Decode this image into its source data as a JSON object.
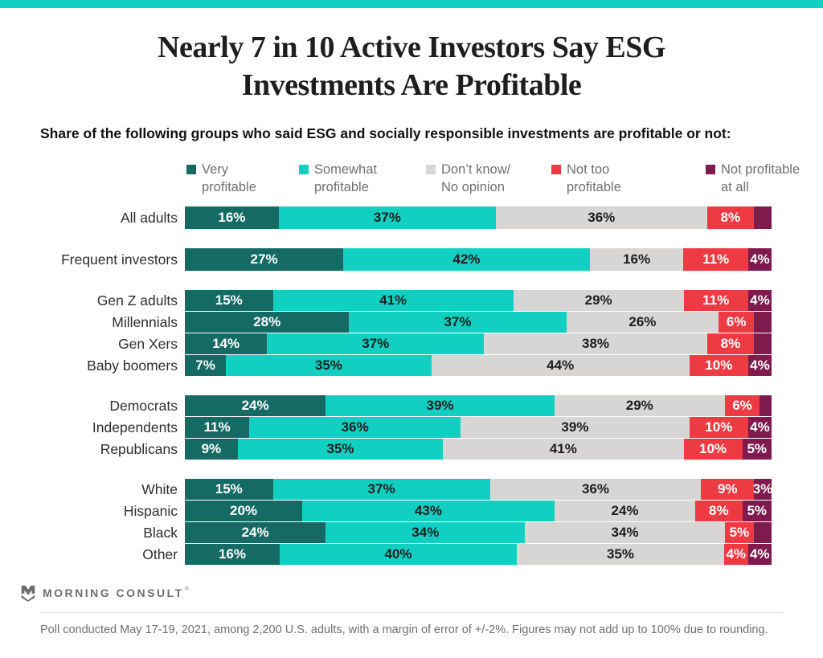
{
  "accent_color": "#11D0C2",
  "title": {
    "line1": "Nearly 7 in 10 Active Investors Say ESG",
    "line2": "Investments Are Profitable"
  },
  "subtitle": "Share of the following groups who said ESG and socially responsible investments are profitable or not:",
  "chart_data": {
    "type": "bar",
    "stacked": true,
    "orientation": "horizontal",
    "unit": "%",
    "xlim": [
      0,
      100
    ],
    "grid": false,
    "legend_position": "top",
    "series_names": [
      "Very profitable",
      "Somewhat profitable",
      "Don't know/No opinion",
      "Not too profitable",
      "Not profitable at all"
    ],
    "series_keys": [
      "very-profitable",
      "somewhat-profitable",
      "dont-know-no-opinion",
      "not-too-profitable",
      "not-profitable-at-all"
    ],
    "series_colors": [
      "#156B64",
      "#11D0C2",
      "#D7D6D4",
      "#EE3A43",
      "#7E1A4D"
    ],
    "legend": [
      {
        "line1": "Very",
        "line2": "profitable"
      },
      {
        "line1": "Somewhat",
        "line2": "profitable"
      },
      {
        "line1": "Don’t know/",
        "line2": "No opinion"
      },
      {
        "line1": "Not too",
        "line2": "profitable"
      },
      {
        "line1": "Not profitable",
        "line2": "at all"
      }
    ],
    "groups": [
      {
        "single": true,
        "rows": [
          {
            "label": "All adults",
            "values": [
              16,
              37,
              36,
              8,
              3
            ],
            "labels": [
              "16%",
              "37%",
              "36%",
              "8%",
              ""
            ]
          }
        ]
      },
      {
        "single": true,
        "rows": [
          {
            "label": "Frequent investors",
            "values": [
              27,
              42,
              16,
              11,
              4
            ],
            "labels": [
              "27%",
              "42%",
              "16%",
              "11%",
              "4%"
            ]
          }
        ]
      },
      {
        "single": false,
        "rows": [
          {
            "label": "Gen Z adults",
            "values": [
              15,
              41,
              29,
              11,
              4
            ],
            "labels": [
              "15%",
              "41%",
              "29%",
              "11%",
              "4%"
            ]
          },
          {
            "label": "Millennials",
            "values": [
              28,
              37,
              26,
              6,
              3
            ],
            "labels": [
              "28%",
              "37%",
              "26%",
              "6%",
              ""
            ]
          },
          {
            "label": "Gen Xers",
            "values": [
              14,
              37,
              38,
              8,
              3
            ],
            "labels": [
              "14%",
              "37%",
              "38%",
              "8%",
              ""
            ]
          },
          {
            "label": "Baby boomers",
            "values": [
              7,
              35,
              44,
              10,
              4
            ],
            "labels": [
              "7%",
              "35%",
              "44%",
              "10%",
              "4%"
            ]
          }
        ]
      },
      {
        "single": false,
        "rows": [
          {
            "label": "Democrats",
            "values": [
              24,
              39,
              29,
              6,
              2
            ],
            "labels": [
              "24%",
              "39%",
              "29%",
              "6%",
              ""
            ]
          },
          {
            "label": "Independents",
            "values": [
              11,
              36,
              39,
              10,
              4
            ],
            "labels": [
              "11%",
              "36%",
              "39%",
              "10%",
              "4%"
            ]
          },
          {
            "label": "Republicans",
            "values": [
              9,
              35,
              41,
              10,
              5
            ],
            "labels": [
              "9%",
              "35%",
              "41%",
              "10%",
              "5%"
            ]
          }
        ]
      },
      {
        "single": false,
        "rows": [
          {
            "label": "White",
            "values": [
              15,
              37,
              36,
              9,
              3
            ],
            "labels": [
              "15%",
              "37%",
              "36%",
              "9%",
              "3%"
            ]
          },
          {
            "label": "Hispanic",
            "values": [
              20,
              43,
              24,
              8,
              5
            ],
            "labels": [
              "20%",
              "43%",
              "24%",
              "8%",
              "5%"
            ]
          },
          {
            "label": "Black",
            "values": [
              24,
              34,
              34,
              5,
              3
            ],
            "labels": [
              "24%",
              "34%",
              "34%",
              "5%",
              ""
            ]
          },
          {
            "label": "Other",
            "values": [
              16,
              40,
              35,
              4,
              4
            ],
            "labels": [
              "16%",
              "40%",
              "35%",
              "4%",
              "4%"
            ]
          }
        ]
      }
    ]
  },
  "footer": {
    "brand": "MORNING CONSULT",
    "trademark": "®",
    "note": "Poll conducted May 17-19, 2021, among 2,200 U.S. adults, with a margin of error of +/-2%. Figures may not add up to 100% due to rounding."
  }
}
